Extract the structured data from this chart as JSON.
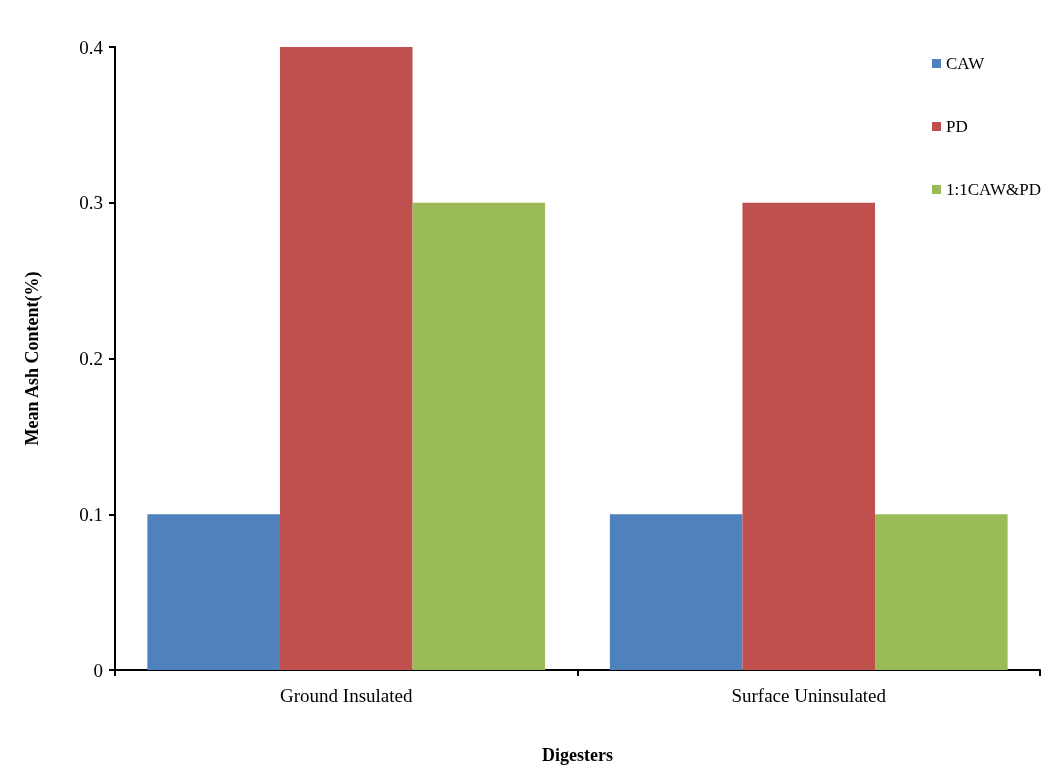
{
  "chart_data": {
    "type": "bar",
    "xlabel": "Digesters",
    "ylabel": "Mean Ash Content(%)",
    "categories": [
      "Ground Insulated",
      "Surface Uninsulated"
    ],
    "series": [
      {
        "name": "CAW",
        "color": "#4f81bd",
        "values": [
          0.1,
          0.1
        ]
      },
      {
        "name": "PD",
        "color": "#c0504d",
        "values": [
          0.4,
          0.3
        ]
      },
      {
        "name": "1:1CAW&PD",
        "color": "#9bbb59",
        "values": [
          0.3,
          0.1
        ]
      }
    ],
    "ylim": [
      0,
      0.4
    ],
    "yticks": [
      0,
      0.1,
      0.2,
      0.3,
      0.4
    ],
    "legend": "top right"
  }
}
